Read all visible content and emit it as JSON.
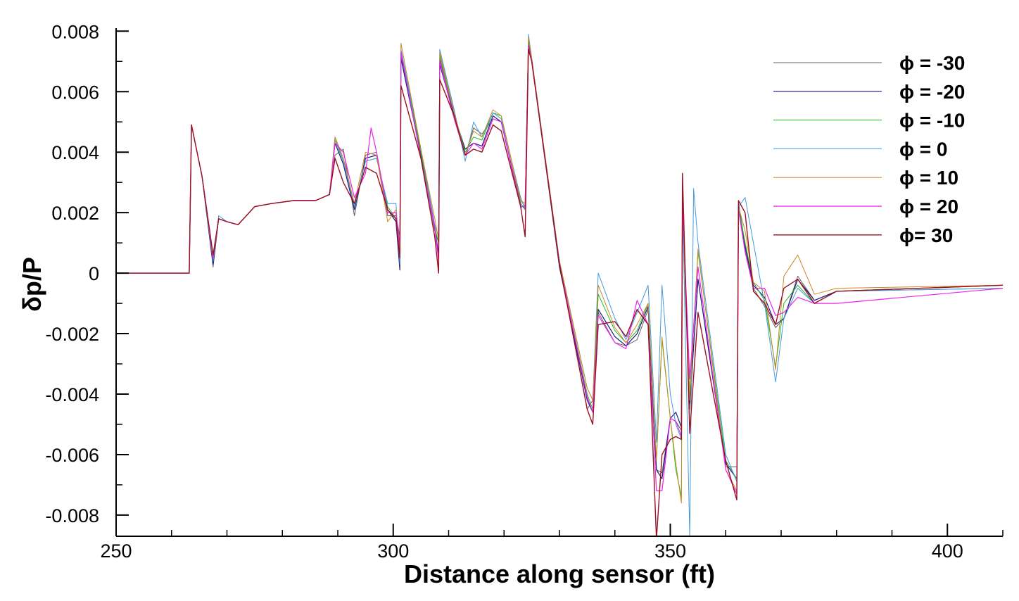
{
  "chart_data": {
    "type": "line",
    "title": "",
    "xlabel": "Distance along sensor (ft)",
    "ylabel": "δp/P",
    "xlim": [
      250,
      410
    ],
    "ylim": [
      -0.0087,
      0.0081
    ],
    "xticks": [
      250,
      300,
      350,
      400
    ],
    "xtick_labels": [
      "250",
      "300",
      "350",
      "400"
    ],
    "yticks": [
      0.008,
      0.006,
      0.004,
      0.002,
      0,
      -0.002,
      -0.004,
      -0.006,
      -0.008
    ],
    "ytick_labels": [
      "0.008",
      "0.006",
      "0.004",
      "0.002",
      "0",
      "-0.002",
      "-0.004",
      "-0.006",
      "-0.008"
    ],
    "x_minor_step": 10,
    "y_minor_step": 0.001,
    "grid": false,
    "legend_position": "top-right",
    "series": [
      {
        "name": "ϕ = -30",
        "color": "#606060",
        "width": 1.0,
        "x": [
          250,
          263.2,
          263.6,
          265.5,
          267.5,
          268.5,
          270,
          272,
          275,
          278,
          282,
          286,
          288.5,
          289.5,
          291,
          293,
          295,
          297,
          299,
          300.5,
          301.2,
          301.4,
          305,
          307.5,
          308.2,
          308.4,
          311,
          313,
          314.5,
          316,
          318,
          319.5,
          323,
          323.8,
          324.4,
          325,
          330,
          335,
          336,
          337,
          340,
          342,
          344,
          346,
          347.5,
          348.5,
          350,
          351,
          352,
          352.2,
          353.5,
          355,
          360,
          362,
          362.3,
          363.5,
          365,
          367,
          369,
          370.5,
          373,
          376,
          380,
          410
        ],
        "y": [
          0,
          0,
          0.0049,
          0.0032,
          0.0002,
          0.0018,
          0.0017,
          0.0016,
          0.0022,
          0.0023,
          0.0024,
          0.0024,
          0.0026,
          0.0039,
          0.0041,
          0.0019,
          0.0039,
          0.004,
          0.0019,
          0.0019,
          0.0012,
          0.0072,
          0.0039,
          0.0014,
          0.001,
          0.0071,
          0.0052,
          0.0039,
          0.0048,
          0.0046,
          0.0051,
          0.005,
          0.0023,
          0.0021,
          0.0076,
          0.007,
          0.0003,
          -0.0045,
          -0.0042,
          -0.0013,
          -0.0023,
          -0.0024,
          -0.0022,
          -0.0012,
          -0.0065,
          -0.0066,
          -0.0048,
          -0.0049,
          -0.0052,
          0.0022,
          -0.0045,
          -0.0002,
          -0.0064,
          -0.0064,
          0.0021,
          0.0008,
          -0.0005,
          -0.0011,
          -0.0018,
          -0.0015,
          -0.0001,
          -0.0009,
          -0.0006,
          -0.0004
        ]
      },
      {
        "name": "ϕ = -20",
        "color": "#1a1a80",
        "width": 1.2,
        "x": [
          250,
          263.2,
          263.6,
          265.5,
          267.5,
          268.5,
          270,
          272,
          275,
          278,
          282,
          286,
          288.5,
          289.5,
          291,
          293,
          295,
          297,
          299,
          300.5,
          301.2,
          301.4,
          305,
          307.5,
          308.2,
          308.4,
          311,
          313,
          314.5,
          316,
          318,
          319.5,
          323,
          323.8,
          324.4,
          325,
          330,
          335,
          336,
          337,
          340,
          342,
          344,
          346,
          347.5,
          348.5,
          350,
          351,
          352,
          352.2,
          353.5,
          355,
          360,
          362,
          362.3,
          363.5,
          365,
          367,
          369,
          370.5,
          373,
          376,
          380,
          410
        ],
        "y": [
          0,
          0,
          0.0049,
          0.0032,
          0.0003,
          0.0018,
          0.0017,
          0.0016,
          0.0022,
          0.0023,
          0.0024,
          0.0024,
          0.0026,
          0.0043,
          0.0036,
          0.0021,
          0.0038,
          0.0039,
          0.0021,
          0.0017,
          0.0001,
          0.0071,
          0.0039,
          0.0015,
          0.0006,
          0.0069,
          0.0052,
          0.0041,
          0.0043,
          0.0042,
          0.0052,
          0.005,
          0.0022,
          0.0022,
          0.0076,
          0.007,
          0.0002,
          -0.0042,
          -0.0046,
          -0.0012,
          -0.0021,
          -0.0024,
          -0.002,
          -0.0011,
          -0.0065,
          -0.0068,
          -0.0048,
          -0.0046,
          -0.0051,
          0.0025,
          -0.0043,
          -0.0002,
          -0.0063,
          -0.0068,
          0.0023,
          0.0009,
          -0.0004,
          -0.0008,
          -0.0017,
          -0.0015,
          -0.0002,
          -0.0009,
          -0.0006,
          -0.0004
        ]
      },
      {
        "name": "ϕ = -10",
        "color": "#22bb22",
        "width": 1.0,
        "x": [
          250,
          263.2,
          263.6,
          265.5,
          267.5,
          268.5,
          270,
          272,
          275,
          278,
          282,
          286,
          288.5,
          289.5,
          291,
          293,
          295,
          297,
          299,
          300.5,
          301.2,
          301.4,
          305,
          307.5,
          308.2,
          308.4,
          311,
          313,
          314.5,
          316,
          318,
          319.5,
          323,
          323.8,
          324.4,
          325,
          330,
          335,
          336,
          337,
          340,
          342,
          344,
          346,
          347.5,
          348.5,
          350,
          351,
          352,
          352.2,
          353.5,
          355,
          360,
          362,
          362.3,
          363.5,
          365,
          367,
          369,
          370.5,
          373,
          376,
          380,
          410
        ],
        "y": [
          0,
          0,
          0.0049,
          0.0032,
          0.0004,
          0.0018,
          0.0017,
          0.0016,
          0.0022,
          0.0023,
          0.0024,
          0.0024,
          0.0026,
          0.0044,
          0.0037,
          0.0022,
          0.0037,
          0.0038,
          0.0022,
          0.0018,
          0.0004,
          0.0073,
          0.004,
          0.0015,
          0.001,
          0.0072,
          0.0053,
          0.004,
          0.0045,
          0.0044,
          0.0053,
          0.0052,
          0.0024,
          0.0022,
          0.0077,
          0.0071,
          0.0003,
          -0.004,
          -0.0045,
          -0.0007,
          -0.0019,
          -0.0023,
          -0.0019,
          -0.001,
          -0.0062,
          -0.0022,
          -0.0048,
          -0.0065,
          -0.0074,
          0.0024,
          -0.004,
          0.0007,
          -0.0062,
          -0.0068,
          0.0022,
          0.001,
          -0.0003,
          -0.0009,
          -0.0031,
          -0.001,
          -0.0004,
          -0.001,
          -0.0006,
          -0.0005
        ]
      },
      {
        "name": "ϕ = 0",
        "color": "#4499dd",
        "width": 1.0,
        "x": [
          250,
          263.2,
          263.6,
          265.5,
          267.5,
          268.5,
          270,
          272,
          275,
          278,
          282,
          286,
          288.5,
          289.5,
          291,
          293,
          295,
          297,
          299,
          300.5,
          301.2,
          301.4,
          305,
          307.5,
          308.2,
          308.4,
          311,
          313,
          314.5,
          316,
          318,
          319.5,
          323,
          323.8,
          324.4,
          325,
          330,
          335,
          336,
          337,
          340,
          342,
          344,
          346,
          347.5,
          348.5,
          350,
          351,
          352,
          352.2,
          353.5,
          354.2,
          355,
          360,
          362,
          362.3,
          363.5,
          365,
          367,
          369,
          370.5,
          373,
          376,
          380,
          410
        ],
        "y": [
          0,
          0,
          0.0049,
          0.0032,
          0.0004,
          0.0019,
          0.0017,
          0.0016,
          0.0022,
          0.0023,
          0.0024,
          0.0024,
          0.0026,
          0.0045,
          0.0037,
          0.0022,
          0.0037,
          0.0038,
          0.0023,
          0.0023,
          0.0003,
          0.0074,
          0.0041,
          0.0016,
          0.0012,
          0.0074,
          0.0054,
          0.0037,
          0.005,
          0.0045,
          0.0053,
          0.0051,
          0.0025,
          0.0021,
          0.0079,
          0.0071,
          0.0004,
          -0.0038,
          -0.0042,
          0.0,
          -0.0015,
          -0.0022,
          -0.0013,
          -0.0004,
          -0.0056,
          -0.0004,
          -0.004,
          -0.005,
          -0.0055,
          0.0024,
          -0.0087,
          0.0028,
          0.001,
          -0.006,
          -0.0069,
          0.0022,
          0.0025,
          0.001,
          -0.001,
          -0.0036,
          -0.0015,
          -0.0005,
          -0.001,
          -0.0006,
          -0.0005
        ]
      },
      {
        "name": "ϕ = 10",
        "color": "#cc8822",
        "width": 1.0,
        "x": [
          250,
          263.2,
          263.6,
          265.5,
          267.5,
          268.5,
          270,
          272,
          275,
          278,
          282,
          286,
          288.5,
          289.5,
          291,
          293,
          295,
          297,
          299,
          300.5,
          301.2,
          301.4,
          305,
          307.5,
          308.2,
          308.4,
          311,
          313,
          314.5,
          316,
          318,
          319.5,
          323,
          323.8,
          324.4,
          325,
          330,
          335,
          336,
          337,
          340,
          342,
          344,
          346,
          347.5,
          348.5,
          350,
          351,
          352,
          352.2,
          353.5,
          355,
          360,
          362,
          362.3,
          363.5,
          365,
          367,
          369,
          370.5,
          373,
          376,
          380,
          410
        ],
        "y": [
          0,
          0,
          0.0049,
          0.0032,
          0.0005,
          0.0018,
          0.0017,
          0.0016,
          0.0022,
          0.0023,
          0.0024,
          0.0024,
          0.0026,
          0.0045,
          0.0038,
          0.0023,
          0.004,
          0.0039,
          0.0017,
          0.0021,
          0.0006,
          0.0076,
          0.0041,
          0.0018,
          0.0011,
          0.0073,
          0.0053,
          0.0039,
          0.0047,
          0.0045,
          0.0054,
          0.0052,
          0.0024,
          0.0023,
          0.0078,
          0.0071,
          0.0004,
          -0.0038,
          -0.0042,
          -0.0004,
          -0.0018,
          -0.0023,
          -0.0017,
          -0.001,
          -0.0062,
          -0.0021,
          -0.0048,
          -0.0063,
          -0.0076,
          0.0023,
          -0.0042,
          0.0008,
          -0.0065,
          -0.0072,
          0.0022,
          0.0014,
          -0.0003,
          -0.0006,
          -0.0032,
          -0.0001,
          0.0006,
          -0.0007,
          -0.0005,
          -0.0004
        ]
      },
      {
        "name": "ϕ = 20",
        "color": "#ee22ee",
        "width": 1.2,
        "x": [
          250,
          263.2,
          263.6,
          265.5,
          267.5,
          268.5,
          270,
          272,
          275,
          278,
          282,
          286,
          288.5,
          289.5,
          291,
          293,
          295,
          296,
          297,
          299,
          300.5,
          301.2,
          301.4,
          305,
          307.5,
          308.2,
          308.4,
          311,
          313,
          314.5,
          316,
          318,
          319.5,
          323,
          323.8,
          324.4,
          325,
          330,
          335,
          336,
          337,
          340,
          342,
          344,
          346,
          347.5,
          348.5,
          350,
          351,
          352,
          352.2,
          353.5,
          355,
          360,
          362,
          362.3,
          363.5,
          365,
          367,
          369,
          370.5,
          373,
          376,
          380,
          410
        ],
        "y": [
          0,
          0,
          0.0049,
          0.0032,
          0.0005,
          0.0018,
          0.0017,
          0.0016,
          0.0022,
          0.0023,
          0.0024,
          0.0024,
          0.0026,
          0.0043,
          0.004,
          0.0025,
          0.0033,
          0.0048,
          0.004,
          0.002,
          0.002,
          0.0009,
          0.0073,
          0.0038,
          0.0015,
          0.0004,
          0.007,
          0.0051,
          0.0039,
          0.0043,
          0.0041,
          0.0051,
          0.005,
          0.0022,
          0.0022,
          0.0075,
          0.007,
          0.0003,
          -0.0041,
          -0.0046,
          -0.0014,
          -0.0023,
          -0.0025,
          -0.0009,
          -0.0017,
          -0.0072,
          -0.0072,
          -0.0048,
          -0.0049,
          -0.0054,
          0.0023,
          -0.0035,
          0.0002,
          -0.0065,
          -0.0073,
          0.0021,
          0.0007,
          -0.0005,
          -0.0005,
          -0.0014,
          -0.0013,
          -0.0008,
          -0.001,
          -0.001,
          -0.0005
        ]
      },
      {
        "name": "ϕ= 30",
        "color": "#991122",
        "width": 1.4,
        "x": [
          250,
          263.2,
          263.6,
          265.5,
          267.5,
          268.5,
          270,
          272,
          275,
          278,
          282,
          286,
          288.5,
          289.5,
          291,
          293,
          295,
          297,
          299,
          300.5,
          301.2,
          301.4,
          305,
          307.5,
          308.2,
          308.4,
          311,
          313,
          314.5,
          316,
          318,
          319.5,
          323,
          323.8,
          324.4,
          325,
          330,
          335,
          336,
          337,
          340,
          342,
          344,
          346,
          347.5,
          348.5,
          350,
          351,
          352,
          352.2,
          353.5,
          355,
          360,
          362,
          362.3,
          363.5,
          365,
          367,
          369,
          370.5,
          373,
          376,
          380,
          410
        ],
        "y": [
          0,
          0,
          0.0049,
          0.0032,
          0.0006,
          0.0018,
          0.0017,
          0.0016,
          0.0022,
          0.0023,
          0.0024,
          0.0024,
          0.0026,
          0.0038,
          0.003,
          0.0023,
          0.0035,
          0.0033,
          0.0021,
          0.0018,
          0.0005,
          0.0062,
          0.0038,
          0.0012,
          0.0,
          0.0064,
          0.0052,
          0.0039,
          0.0041,
          0.004,
          0.0049,
          0.0047,
          0.0022,
          0.0012,
          0.0074,
          0.007,
          0.0003,
          -0.0045,
          -0.005,
          -0.0017,
          -0.0016,
          -0.0021,
          -0.0012,
          -0.0017,
          -0.0088,
          -0.006,
          -0.0055,
          -0.0054,
          -0.0055,
          0.0033,
          -0.0053,
          -0.0013,
          -0.0062,
          -0.0075,
          0.0024,
          0.002,
          -0.0006,
          -0.001,
          -0.0017,
          -0.0005,
          -0.0002,
          -0.001,
          -0.0006,
          -0.0004
        ]
      }
    ]
  }
}
